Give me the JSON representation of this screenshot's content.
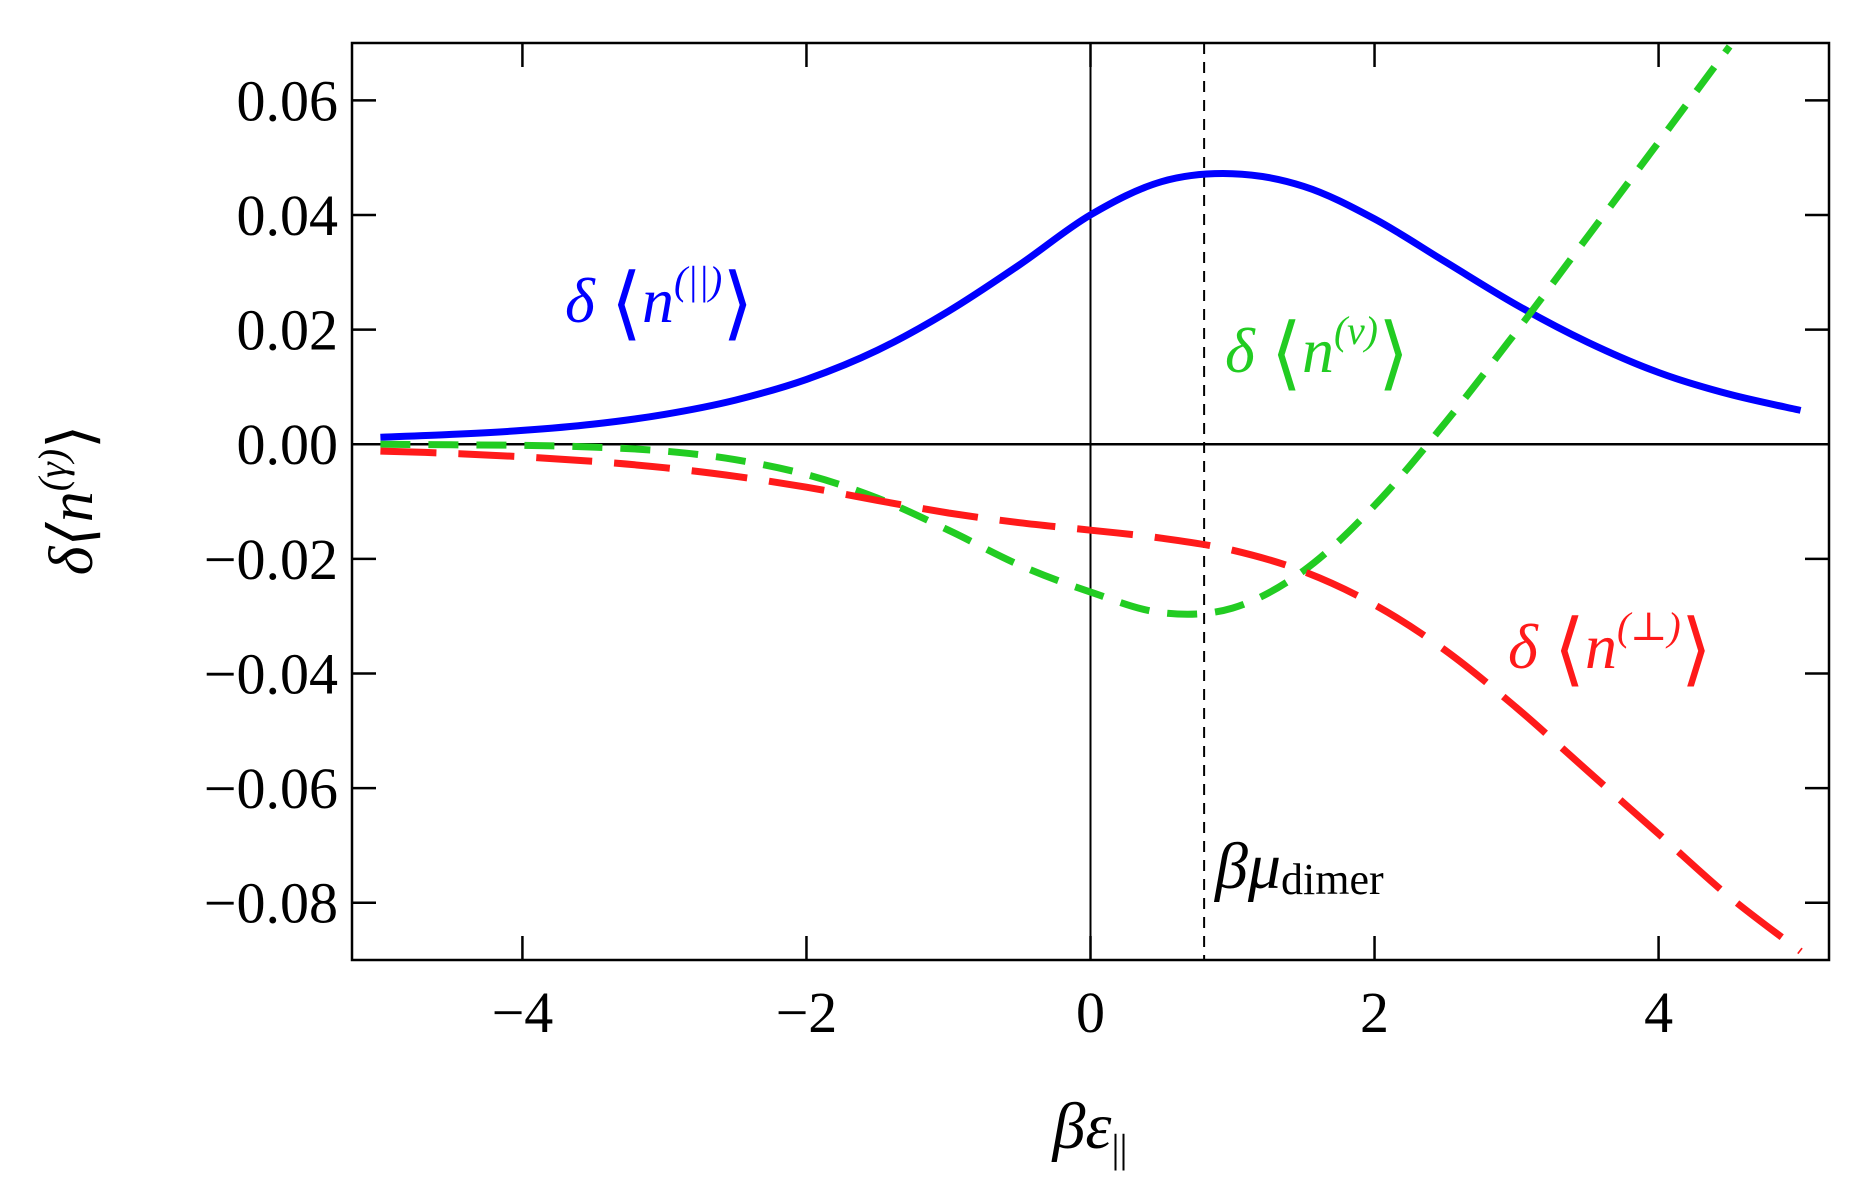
{
  "chart_data": {
    "type": "line",
    "title": "",
    "xlabel": {
      "main": "βε",
      "sub": "||"
    },
    "ylabel": {
      "pre": "δ⟨",
      "var": "n",
      "sup": "(γ)",
      "post": "⟩"
    },
    "xlim": [
      -5.2,
      5.2
    ],
    "ylim": [
      -0.09,
      0.07
    ],
    "xticks": [
      -4,
      -2,
      0,
      2,
      4
    ],
    "xtick_labels": [
      "−4",
      "−2",
      "0",
      "2",
      "4"
    ],
    "yticks": [
      0.06,
      0.04,
      0.02,
      0.0,
      -0.02,
      -0.04,
      -0.06,
      -0.08
    ],
    "ytick_labels": [
      "0.06",
      "0.04",
      "0.02",
      "0.00",
      "−0.02",
      "−0.04",
      "−0.06",
      "−0.08"
    ],
    "reference_lines": {
      "horizontal_y": 0,
      "vertical_x": 0,
      "dashed_vertical_x": 0.8
    },
    "series": [
      {
        "name": "δ ⟨n(||)⟩",
        "label_parts": {
          "pre": "δ",
          "var": "n",
          "sup": "(||)"
        },
        "color": "#0000ff",
        "style": "solid",
        "x": [
          -5.0,
          -4.5,
          -4.0,
          -3.5,
          -3.0,
          -2.5,
          -2.0,
          -1.5,
          -1.0,
          -0.5,
          0.0,
          0.5,
          1.0,
          1.5,
          2.0,
          2.5,
          3.0,
          3.5,
          4.0,
          4.5,
          5.0
        ],
        "y": [
          0.0012,
          0.0017,
          0.0024,
          0.0035,
          0.0052,
          0.0077,
          0.0113,
          0.0164,
          0.0232,
          0.0313,
          0.04,
          0.0458,
          0.0472,
          0.045,
          0.0393,
          0.0318,
          0.0243,
          0.0178,
          0.0125,
          0.0087,
          0.0059
        ]
      },
      {
        "name": "δ ⟨n(v)⟩",
        "label_parts": {
          "pre": "δ",
          "var": "n",
          "sup": "(v)"
        },
        "color": "#22cc22",
        "style": "dashed",
        "x": [
          -5.0,
          -4.5,
          -4.0,
          -3.5,
          -3.0,
          -2.5,
          -2.0,
          -1.5,
          -1.0,
          -0.5,
          0.0,
          0.5,
          1.0,
          1.5,
          2.0,
          2.5,
          3.0,
          3.5,
          4.0,
          4.5
        ],
        "y": [
          0.0,
          -0.0001,
          -0.0002,
          -0.0005,
          -0.0012,
          -0.0027,
          -0.0053,
          -0.0094,
          -0.015,
          -0.0211,
          -0.0258,
          -0.0294,
          -0.0286,
          -0.0221,
          -0.0107,
          0.0038,
          0.0197,
          0.0362,
          0.0527,
          0.0694
        ]
      },
      {
        "name": "δ ⟨n(⊥)⟩",
        "label_parts": {
          "pre": "δ",
          "var": "n",
          "sup": "(⊥)"
        },
        "color": "#ff1a1a",
        "style": "long-dash",
        "x": [
          -5.0,
          -4.5,
          -4.0,
          -3.5,
          -3.0,
          -2.5,
          -2.0,
          -1.5,
          -1.0,
          -0.5,
          0.0,
          0.5,
          1.0,
          1.5,
          2.0,
          2.5,
          3.0,
          3.5,
          4.0,
          4.5,
          5.0
        ],
        "y": [
          -0.0012,
          -0.0016,
          -0.0022,
          -0.003,
          -0.0041,
          -0.0056,
          -0.0075,
          -0.0098,
          -0.012,
          -0.0137,
          -0.015,
          -0.0164,
          -0.0185,
          -0.0222,
          -0.028,
          -0.036,
          -0.046,
          -0.057,
          -0.068,
          -0.079,
          -0.0885
        ]
      }
    ],
    "annotations": [
      {
        "parts": {
          "main": "βμ",
          "sub": "dimer"
        },
        "color": "#000000"
      }
    ]
  }
}
